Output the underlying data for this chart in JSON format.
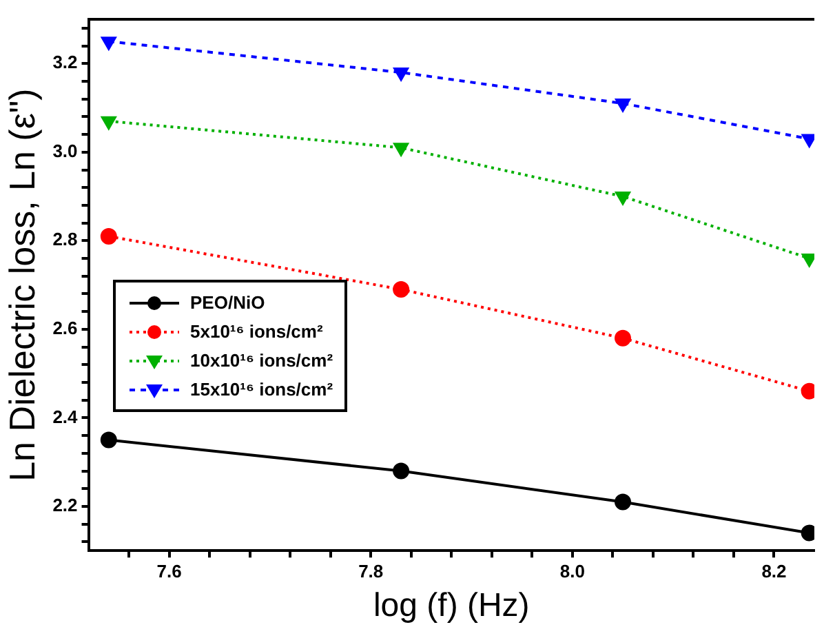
{
  "chart_data": {
    "type": "line",
    "xlabel": "log (f) (Hz)",
    "ylabel": "Ln Dielectric loss, Ln (ε\")",
    "x": [
      7.54,
      7.83,
      8.05,
      8.235
    ],
    "series": [
      {
        "name": "PEO/NiO",
        "color": "#000000",
        "values": [
          2.35,
          2.28,
          2.21,
          2.14
        ],
        "marker": "circle",
        "line_style": "solid"
      },
      {
        "name": "5x10¹⁶ ions/cm²",
        "color": "#ff0000",
        "values": [
          2.81,
          2.69,
          2.58,
          2.46
        ],
        "marker": "circle",
        "line_style": "dotted"
      },
      {
        "name": "10x10¹⁶ ions/cm²",
        "color": "#00b000",
        "values": [
          3.07,
          3.01,
          2.9,
          2.76
        ],
        "marker": "triangle",
        "line_style": "dotted"
      },
      {
        "name": "15x10¹⁶ ions/cm²",
        "color": "#0000ff",
        "values": [
          3.25,
          3.18,
          3.11,
          3.03
        ],
        "marker": "triangle",
        "line_style": "dashed"
      }
    ],
    "xlim": [
      7.52,
      8.24
    ],
    "ylim": [
      2.1,
      3.3
    ],
    "xticks": [
      {
        "value": 7.56,
        "label": null
      },
      {
        "value": 7.6,
        "label": "7.6"
      },
      {
        "value": 7.64,
        "label": null
      },
      {
        "value": 7.68,
        "label": null
      },
      {
        "value": 7.72,
        "label": null
      },
      {
        "value": 7.76,
        "label": null
      },
      {
        "value": 7.8,
        "label": "7.8"
      },
      {
        "value": 7.84,
        "label": null
      },
      {
        "value": 7.88,
        "label": null
      },
      {
        "value": 7.92,
        "label": null
      },
      {
        "value": 7.96,
        "label": null
      },
      {
        "value": 8,
        "label": "8.0"
      },
      {
        "value": 8.04,
        "label": null
      },
      {
        "value": 8.08,
        "label": null
      },
      {
        "value": 8.12,
        "label": null
      },
      {
        "value": 8.16,
        "label": null
      },
      {
        "value": 8.2,
        "label": "8.2"
      }
    ],
    "yticks": [
      {
        "value": 2.12,
        "label": null
      },
      {
        "value": 2.16,
        "label": null
      },
      {
        "value": 2.2,
        "label": "2.2"
      },
      {
        "value": 2.24,
        "label": null
      },
      {
        "value": 2.28,
        "label": null
      },
      {
        "value": 2.32,
        "label": null
      },
      {
        "value": 2.36,
        "label": null
      },
      {
        "value": 2.4,
        "label": "2.4"
      },
      {
        "value": 2.44,
        "label": null
      },
      {
        "value": 2.48,
        "label": null
      },
      {
        "value": 2.52,
        "label": null
      },
      {
        "value": 2.56,
        "label": null
      },
      {
        "value": 2.6,
        "label": "2.6"
      },
      {
        "value": 2.64,
        "label": null
      },
      {
        "value": 2.68,
        "label": null
      },
      {
        "value": 2.72,
        "label": null
      },
      {
        "value": 2.76,
        "label": null
      },
      {
        "value": 2.8,
        "label": "2.8"
      },
      {
        "value": 2.84,
        "label": null
      },
      {
        "value": 2.88,
        "label": null
      },
      {
        "value": 2.92,
        "label": null
      },
      {
        "value": 2.96,
        "label": null
      },
      {
        "value": 3,
        "label": "3.0"
      },
      {
        "value": 3.04,
        "label": null
      },
      {
        "value": 3.08,
        "label": null
      },
      {
        "value": 3.12,
        "label": null
      },
      {
        "value": 3.16,
        "label": null
      },
      {
        "value": 3.2,
        "label": "3.2"
      },
      {
        "value": 3.24,
        "label": null
      },
      {
        "value": 3.28,
        "label": null
      }
    ],
    "grid": false,
    "legend": "left"
  }
}
